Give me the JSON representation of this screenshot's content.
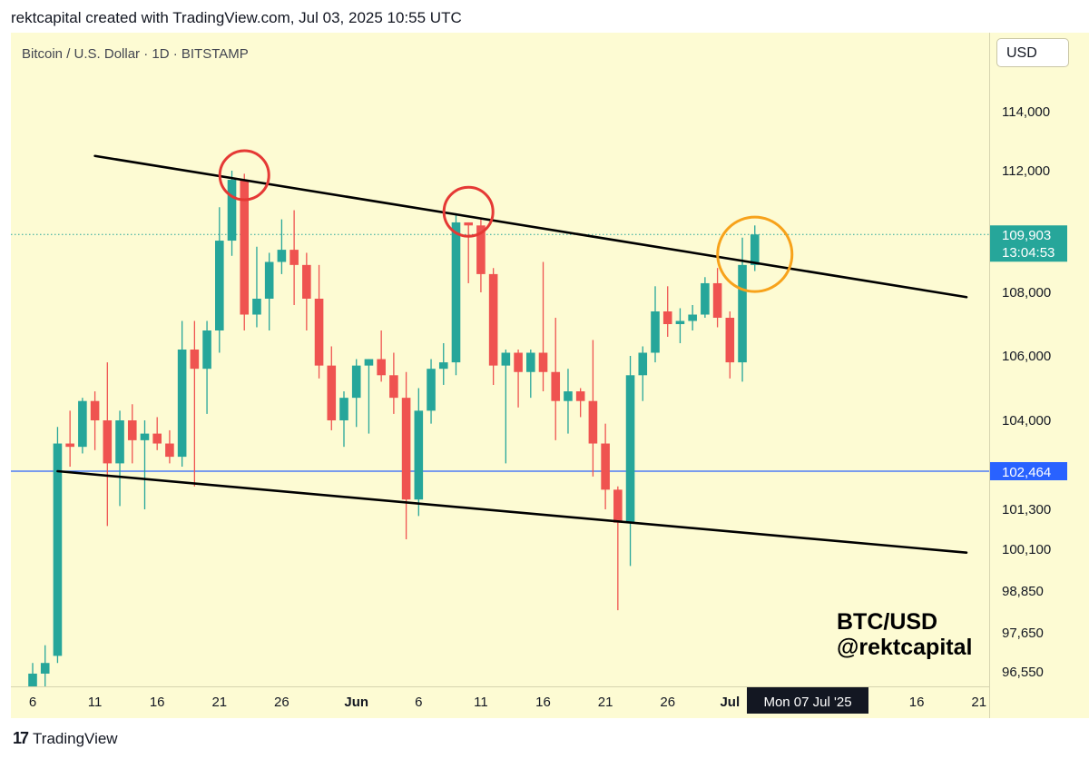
{
  "header": {
    "caption": "rektcapital created with TradingView.com, Jul 03, 2025 10:55 UTC"
  },
  "chart": {
    "symbol": "Bitcoin / U.S. Dollar · 1D · BITSTAMP",
    "currency": "USD",
    "watermark_line1": "BTC/USD",
    "watermark_line2": "@rektcapital",
    "date_tooltip": "Mon 07 Jul '25",
    "countdown": "13:04:53"
  },
  "footer": {
    "brand": "TradingView",
    "logo_glyph": "17"
  },
  "colors": {
    "up": "#26a69a",
    "down": "#ef5350",
    "background": "#fdfbd3",
    "level_line": "#2962ff",
    "trendline": "#000000",
    "circle_red": "#e53935",
    "circle_orange": "#f7a21b"
  },
  "chart_data": {
    "type": "candlestick",
    "y_ticks": [
      {
        "value": 114000,
        "label": "114,000"
      },
      {
        "value": 112000,
        "label": "112,000"
      },
      {
        "value": 108000,
        "label": "108,000"
      },
      {
        "value": 106000,
        "label": "106,000"
      },
      {
        "value": 104000,
        "label": "104,000"
      },
      {
        "value": 101300,
        "label": "101,300"
      },
      {
        "value": 100100,
        "label": "100,100"
      },
      {
        "value": 98850,
        "label": "98,850"
      },
      {
        "value": 97650,
        "label": "97,650"
      },
      {
        "value": 96550,
        "label": "96,550"
      }
    ],
    "x_ticks": [
      {
        "date": "2025-05-06",
        "label": "6",
        "bold": false
      },
      {
        "date": "2025-05-11",
        "label": "11",
        "bold": false
      },
      {
        "date": "2025-05-16",
        "label": "16",
        "bold": false
      },
      {
        "date": "2025-05-21",
        "label": "21",
        "bold": false
      },
      {
        "date": "2025-05-26",
        "label": "26",
        "bold": false
      },
      {
        "date": "2025-06-01",
        "label": "Jun",
        "bold": true
      },
      {
        "date": "2025-06-06",
        "label": "6",
        "bold": false
      },
      {
        "date": "2025-06-11",
        "label": "11",
        "bold": false
      },
      {
        "date": "2025-06-16",
        "label": "16",
        "bold": false
      },
      {
        "date": "2025-06-21",
        "label": "21",
        "bold": false
      },
      {
        "date": "2025-06-26",
        "label": "26",
        "bold": false
      },
      {
        "date": "2025-07-01",
        "label": "Jul",
        "bold": true
      },
      {
        "date": "2025-07-16",
        "label": "16",
        "bold": false
      },
      {
        "date": "2025-07-21",
        "label": "21",
        "bold": false
      }
    ],
    "current_price": {
      "value": 109903,
      "label": "109,903"
    },
    "horizontal_level": {
      "value": 102464,
      "label": "102,464"
    },
    "trendlines": [
      {
        "name": "upper",
        "from": {
          "date": "2025-05-11",
          "price": 112500
        },
        "to": {
          "date": "2025-07-20",
          "price": 107850
        }
      },
      {
        "name": "lower",
        "from": {
          "date": "2025-05-08",
          "price": 102464
        },
        "to": {
          "date": "2025-07-20",
          "price": 100000
        }
      }
    ],
    "annotations": [
      {
        "type": "circle",
        "color": "red",
        "date": "2025-05-23",
        "price": 111850
      },
      {
        "type": "circle",
        "color": "red",
        "date": "2025-06-10",
        "price": 110650
      },
      {
        "type": "circle",
        "color": "orange",
        "date": "2025-07-03",
        "price": 109250
      }
    ],
    "candles": [
      {
        "date": "2025-05-05",
        "o": 94300,
        "h": 95000,
        "l": 93800,
        "c": 94700
      },
      {
        "date": "2025-05-06",
        "o": 94700,
        "h": 96800,
        "l": 94500,
        "c": 96500
      },
      {
        "date": "2025-05-07",
        "o": 96500,
        "h": 97300,
        "l": 95800,
        "c": 96800
      },
      {
        "date": "2025-05-08",
        "o": 97000,
        "h": 103800,
        "l": 96800,
        "c": 103300
      },
      {
        "date": "2025-05-09",
        "o": 103300,
        "h": 104300,
        "l": 102600,
        "c": 103200
      },
      {
        "date": "2025-05-10",
        "o": 103200,
        "h": 104700,
        "l": 103000,
        "c": 104600
      },
      {
        "date": "2025-05-11",
        "o": 104600,
        "h": 104900,
        "l": 103100,
        "c": 104000
      },
      {
        "date": "2025-05-12",
        "o": 104000,
        "h": 105800,
        "l": 100800,
        "c": 102700
      },
      {
        "date": "2025-05-13",
        "o": 102700,
        "h": 104300,
        "l": 101400,
        "c": 104000
      },
      {
        "date": "2025-05-14",
        "o": 104000,
        "h": 104500,
        "l": 102700,
        "c": 103400
      },
      {
        "date": "2025-05-15",
        "o": 103400,
        "h": 104000,
        "l": 101300,
        "c": 103600
      },
      {
        "date": "2025-05-16",
        "o": 103600,
        "h": 104100,
        "l": 103100,
        "c": 103300
      },
      {
        "date": "2025-05-17",
        "o": 103300,
        "h": 103700,
        "l": 102700,
        "c": 102900
      },
      {
        "date": "2025-05-18",
        "o": 102900,
        "h": 107100,
        "l": 102600,
        "c": 106200
      },
      {
        "date": "2025-05-19",
        "o": 106200,
        "h": 107100,
        "l": 102000,
        "c": 105600
      },
      {
        "date": "2025-05-20",
        "o": 105600,
        "h": 107100,
        "l": 104200,
        "c": 106800
      },
      {
        "date": "2025-05-21",
        "o": 106800,
        "h": 110800,
        "l": 106100,
        "c": 109700
      },
      {
        "date": "2025-05-22",
        "o": 109700,
        "h": 112000,
        "l": 109200,
        "c": 111700
      },
      {
        "date": "2025-05-23",
        "o": 111700,
        "h": 111900,
        "l": 106800,
        "c": 107300
      },
      {
        "date": "2025-05-24",
        "o": 107300,
        "h": 109500,
        "l": 106900,
        "c": 107800
      },
      {
        "date": "2025-05-25",
        "o": 107800,
        "h": 109300,
        "l": 106800,
        "c": 109000
      },
      {
        "date": "2025-05-26",
        "o": 109000,
        "h": 110400,
        "l": 108600,
        "c": 109400
      },
      {
        "date": "2025-05-27",
        "o": 109400,
        "h": 110700,
        "l": 107600,
        "c": 108900
      },
      {
        "date": "2025-05-28",
        "o": 108900,
        "h": 109300,
        "l": 106800,
        "c": 107800
      },
      {
        "date": "2025-05-29",
        "o": 107800,
        "h": 108900,
        "l": 105300,
        "c": 105700
      },
      {
        "date": "2025-05-30",
        "o": 105700,
        "h": 106300,
        "l": 103700,
        "c": 104000
      },
      {
        "date": "2025-05-31",
        "o": 104000,
        "h": 104900,
        "l": 103200,
        "c": 104700
      },
      {
        "date": "2025-06-01",
        "o": 104700,
        "h": 105900,
        "l": 103800,
        "c": 105700
      },
      {
        "date": "2025-06-02",
        "o": 105700,
        "h": 105900,
        "l": 103600,
        "c": 105900
      },
      {
        "date": "2025-06-03",
        "o": 105900,
        "h": 106800,
        "l": 105200,
        "c": 105400
      },
      {
        "date": "2025-06-04",
        "o": 105400,
        "h": 106100,
        "l": 104200,
        "c": 104700
      },
      {
        "date": "2025-06-05",
        "o": 104700,
        "h": 105500,
        "l": 100400,
        "c": 101600
      },
      {
        "date": "2025-06-06",
        "o": 101600,
        "h": 105000,
        "l": 101100,
        "c": 104300
      },
      {
        "date": "2025-06-07",
        "o": 104300,
        "h": 105900,
        "l": 103900,
        "c": 105600
      },
      {
        "date": "2025-06-08",
        "o": 105600,
        "h": 106400,
        "l": 105100,
        "c": 105800
      },
      {
        "date": "2025-06-09",
        "o": 105800,
        "h": 110600,
        "l": 105400,
        "c": 110300
      },
      {
        "date": "2025-06-10",
        "o": 110300,
        "h": 110300,
        "l": 108300,
        "c": 110200
      },
      {
        "date": "2025-06-11",
        "o": 110200,
        "h": 110400,
        "l": 108000,
        "c": 108600
      },
      {
        "date": "2025-06-12",
        "o": 108600,
        "h": 108800,
        "l": 105100,
        "c": 105700
      },
      {
        "date": "2025-06-13",
        "o": 105700,
        "h": 106200,
        "l": 102700,
        "c": 106100
      },
      {
        "date": "2025-06-14",
        "o": 106100,
        "h": 106200,
        "l": 104400,
        "c": 105500
      },
      {
        "date": "2025-06-15",
        "o": 105500,
        "h": 106200,
        "l": 104700,
        "c": 106100
      },
      {
        "date": "2025-06-16",
        "o": 106100,
        "h": 109000,
        "l": 104900,
        "c": 105500
      },
      {
        "date": "2025-06-17",
        "o": 105500,
        "h": 107200,
        "l": 103400,
        "c": 104600
      },
      {
        "date": "2025-06-18",
        "o": 104600,
        "h": 105600,
        "l": 103600,
        "c": 104900
      },
      {
        "date": "2025-06-19",
        "o": 104900,
        "h": 105000,
        "l": 104100,
        "c": 104600
      },
      {
        "date": "2025-06-20",
        "o": 104600,
        "h": 106500,
        "l": 102300,
        "c": 103300
      },
      {
        "date": "2025-06-21",
        "o": 103300,
        "h": 103900,
        "l": 101300,
        "c": 101900
      },
      {
        "date": "2025-06-22",
        "o": 101900,
        "h": 102000,
        "l": 98300,
        "c": 100900
      },
      {
        "date": "2025-06-23",
        "o": 100900,
        "h": 106000,
        "l": 99600,
        "c": 105400
      },
      {
        "date": "2025-06-24",
        "o": 105400,
        "h": 106300,
        "l": 104600,
        "c": 106100
      },
      {
        "date": "2025-06-25",
        "o": 106100,
        "h": 108200,
        "l": 105800,
        "c": 107400
      },
      {
        "date": "2025-06-26",
        "o": 107400,
        "h": 108200,
        "l": 106600,
        "c": 107000
      },
      {
        "date": "2025-06-27",
        "o": 107000,
        "h": 107500,
        "l": 106400,
        "c": 107100
      },
      {
        "date": "2025-06-28",
        "o": 107100,
        "h": 107600,
        "l": 106800,
        "c": 107300
      },
      {
        "date": "2025-06-29",
        "o": 107300,
        "h": 108500,
        "l": 107200,
        "c": 108300
      },
      {
        "date": "2025-06-30",
        "o": 108300,
        "h": 108800,
        "l": 106900,
        "c": 107200
      },
      {
        "date": "2025-07-01",
        "o": 107200,
        "h": 107400,
        "l": 105300,
        "c": 105800
      },
      {
        "date": "2025-07-02",
        "o": 105800,
        "h": 109800,
        "l": 105200,
        "c": 108900
      },
      {
        "date": "2025-07-03",
        "o": 108900,
        "h": 110200,
        "l": 108700,
        "c": 109903
      }
    ]
  }
}
